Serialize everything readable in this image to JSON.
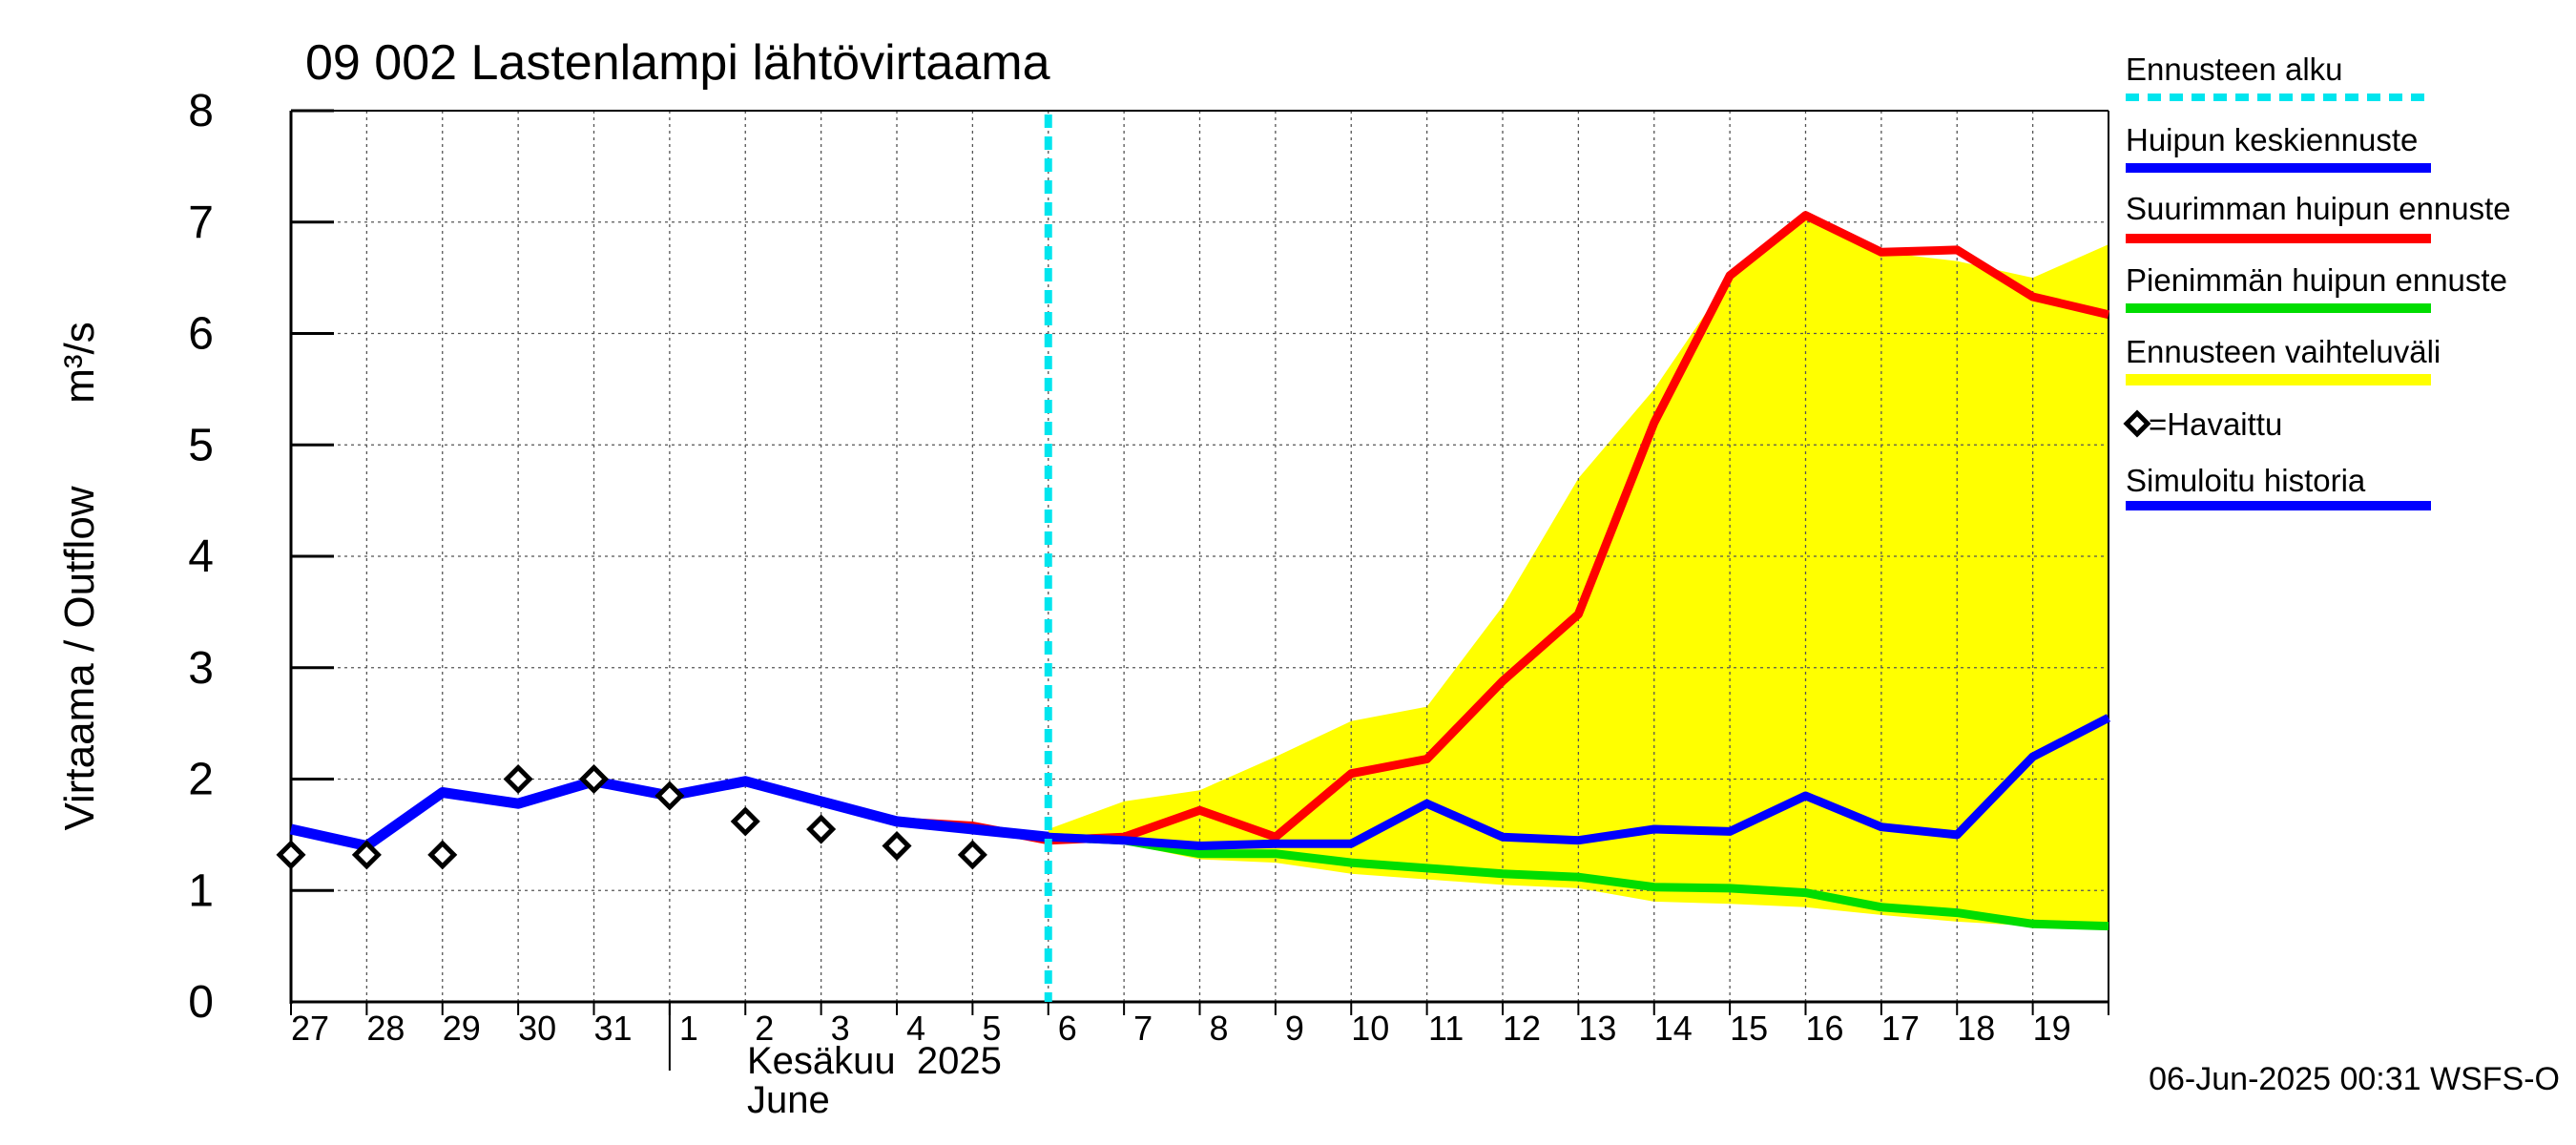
{
  "chart_data": {
    "type": "line",
    "title": "09 002 Lastenlampi lähtövirtaama",
    "ylabel": "Virtaama / Outflow",
    "yunit": "m³/s",
    "ylim": [
      0,
      8
    ],
    "yticks": [
      "0",
      "1",
      "2",
      "3",
      "4",
      "5",
      "6",
      "7",
      "8"
    ],
    "xdays": [
      "27",
      "28",
      "29",
      "30",
      "31",
      "1",
      "2",
      "3",
      "4",
      "5",
      "6",
      "7",
      "8",
      "9",
      "10",
      "11",
      "12",
      "13",
      "14",
      "15",
      "16",
      "17",
      "18",
      "19"
    ],
    "month_label": "Kesäkuu  2025",
    "month_label_en": "June",
    "forecast_start": "6",
    "grid": true,
    "legend_placement": "right",
    "footer": "06-Jun-2025 00:31 WSFS-O",
    "colors": {
      "forecast_start": "#00e5ee",
      "mean_peak": "#0000ff",
      "max_peak": "#ff0000",
      "min_peak": "#00dd00",
      "range": "#ffff00",
      "history": "#0000ff",
      "observed": "#000000"
    },
    "legend": [
      {
        "key": "forecast_start",
        "label": "Ennusteen alku"
      },
      {
        "key": "mean_peak",
        "label": "Huipun keskiennuste"
      },
      {
        "key": "max_peak",
        "label": "Suurimman huipun ennuste"
      },
      {
        "key": "min_peak",
        "label": "Pienimmän huipun ennuste"
      },
      {
        "key": "range",
        "label": "Ennusteen vaihteluväli"
      },
      {
        "key": "observed",
        "label": "=Havaittu"
      },
      {
        "key": "history",
        "label": "Simuloitu historia"
      }
    ],
    "series": {
      "history": {
        "x": [
          0,
          1,
          2,
          3,
          4,
          5,
          6,
          7,
          8,
          9,
          10
        ],
        "y": [
          1.55,
          1.4,
          1.88,
          1.78,
          1.98,
          1.85,
          1.98,
          1.8,
          1.62,
          1.55,
          1.48
        ]
      },
      "observed": {
        "x": [
          0,
          1,
          2,
          3,
          4,
          5,
          6,
          7,
          8,
          9
        ],
        "y": [
          1.32,
          1.32,
          1.32,
          2.0,
          2.0,
          1.85,
          1.62,
          1.55,
          1.4,
          1.32
        ]
      },
      "max_peak": {
        "x": [
          8,
          9,
          10,
          11,
          12,
          13,
          14,
          15,
          16,
          17,
          18,
          19,
          20,
          21,
          22,
          23,
          24
        ],
        "y": [
          1.62,
          1.58,
          1.45,
          1.48,
          1.72,
          1.48,
          2.05,
          2.18,
          2.88,
          3.48,
          5.2,
          6.52,
          7.06,
          6.73,
          6.75,
          6.33,
          6.17
        ]
      },
      "mean_peak": {
        "x": [
          10,
          11,
          12,
          13,
          14,
          15,
          16,
          17,
          18,
          19,
          20,
          21,
          22,
          23,
          24
        ],
        "y": [
          1.48,
          1.45,
          1.4,
          1.42,
          1.42,
          1.78,
          1.48,
          1.45,
          1.55,
          1.53,
          1.85,
          1.57,
          1.5,
          2.2,
          2.55
        ]
      },
      "min_peak": {
        "x": [
          10,
          11,
          12,
          13,
          14,
          15,
          16,
          17,
          18,
          19,
          20,
          21,
          22,
          23,
          24
        ],
        "y": [
          1.48,
          1.45,
          1.33,
          1.33,
          1.25,
          1.2,
          1.15,
          1.12,
          1.03,
          1.02,
          0.98,
          0.85,
          0.8,
          0.7,
          0.68
        ]
      },
      "range_upper": {
        "x": [
          10,
          11,
          12,
          13,
          14,
          15,
          16,
          17,
          18,
          19,
          20,
          21,
          22,
          23,
          24
        ],
        "y": [
          1.55,
          1.8,
          1.9,
          2.2,
          2.52,
          2.65,
          3.55,
          4.7,
          5.5,
          6.5,
          7.05,
          6.73,
          6.65,
          6.5,
          6.8
        ]
      },
      "range_lower": {
        "x": [
          10,
          11,
          12,
          13,
          14,
          15,
          16,
          17,
          18,
          19,
          20,
          21,
          22,
          23,
          24
        ],
        "y": [
          1.48,
          1.42,
          1.28,
          1.25,
          1.15,
          1.1,
          1.05,
          1.02,
          0.9,
          0.88,
          0.85,
          0.78,
          0.72,
          0.68,
          0.65
        ]
      }
    }
  }
}
